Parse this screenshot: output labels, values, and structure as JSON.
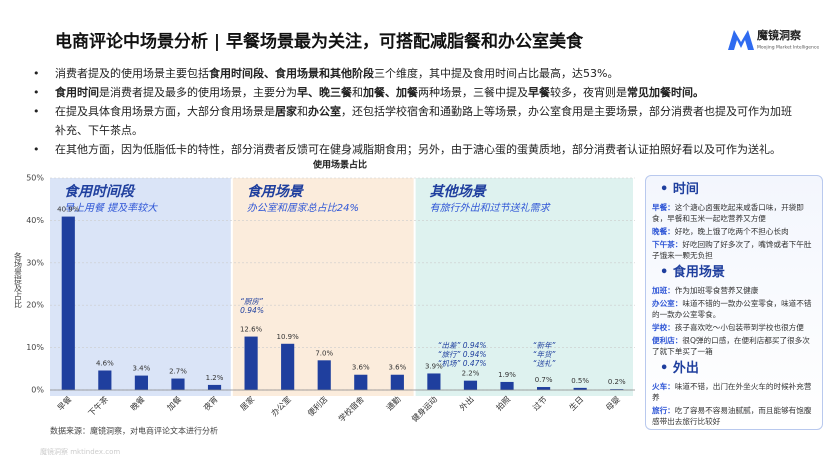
{
  "header": {
    "title": "电商评论中场景分析 | 早餐场景最为关注，可搭配减脂餐和办公室美食",
    "logo_name": "魔镜洞察",
    "logo_subtitle": "Moojing Market Intelligence"
  },
  "bullets": [
    [
      {
        "text": "消费者提及的使用场景主要包括"
      },
      {
        "text": "食用时间段、食用场景和其他阶段",
        "bold": true
      },
      {
        "text": "三个维度，其中提及食用时间占比最高，达53%。"
      }
    ],
    [
      {
        "text": "食用时间",
        "bold": true
      },
      {
        "text": "是消费者提及最多的使用场景，主要分为"
      },
      {
        "text": "早、晚三餐",
        "bold": true
      },
      {
        "text": "和"
      },
      {
        "text": "加餐、加餐",
        "bold": true
      },
      {
        "text": "两种场景，三餐中提及"
      },
      {
        "text": "早餐",
        "bold": true
      },
      {
        "text": "较多，夜宵则是"
      },
      {
        "text": "常见加餐时间。",
        "bold": true
      }
    ],
    [
      {
        "text": "在提及具体食用场景方面，大部分食用场景是"
      },
      {
        "text": "居家",
        "bold": true
      },
      {
        "text": "和"
      },
      {
        "text": "办公室",
        "bold": true
      },
      {
        "text": "，还包括学校宿舍和通勤路上等场景，办公室食用是主要场景，部分消费者也提及可作为加班补充、下午茶点。"
      }
    ],
    [
      {
        "text": "在其他方面，因为低脂低卡的特性，部分消费者反馈可在健身减脂期食用；另外，由于溏心蛋的蛋黄质地，部分消费者认证拍照好看以及可作为送礼。"
      }
    ]
  ],
  "chart_data": {
    "type": "bar",
    "title": "使用场景占比",
    "y_label": "各场景提及占比",
    "categories": [
      "早餐",
      "下午茶",
      "晚餐",
      "加餐",
      "夜宵",
      "居家",
      "办公室",
      "便利店",
      "学校宿舍",
      "通勤",
      "健身运动",
      "外出",
      "拍照",
      "过节",
      "生日",
      "母婴"
    ],
    "values": [
      40.9,
      4.6,
      3.4,
      2.7,
      1.2,
      12.6,
      10.9,
      7.0,
      3.6,
      3.6,
      3.9,
      2.2,
      1.9,
      0.7,
      0.5,
      0.2
    ],
    "value_labels": [
      "40.9%",
      "4.6%",
      "3.4%",
      "2.7%",
      "1.2%",
      "12.6%",
      "10.9%",
      "7.0%",
      "3.6%",
      "3.6%",
      "3.9%",
      "2.2%",
      "1.9%",
      "0.7%",
      "0.5%",
      "0.2%"
    ],
    "color": "#1f3f9e",
    "ylim": [
      0,
      50
    ],
    "yticks": [
      {
        "value": 0,
        "label": "0%"
      },
      {
        "value": 10,
        "label": "10%"
      },
      {
        "value": 20,
        "label": "20%"
      },
      {
        "value": 30,
        "label": "30%"
      },
      {
        "value": 40,
        "label": "40%"
      },
      {
        "value": 50,
        "label": "50%"
      }
    ],
    "grid": true,
    "groups": [
      {
        "title": "食用时间段",
        "subtitle": "早上用餐 提及率较大"
      },
      {
        "title": "食用场景",
        "subtitle": "办公室和居家总占比24%"
      },
      {
        "title": "其他场景",
        "subtitle": "有旅行外出和过节送礼需求"
      }
    ],
    "annotations": [
      [
        "“厨房”",
        "0.94%"
      ],
      [
        "“出差”  0.94%",
        "“旅行”  0.94%",
        "“机场”  0.47%"
      ],
      [
        "“新年”",
        "“年货”",
        "“送礼”"
      ]
    ]
  },
  "side_panel": [
    {
      "heading": "时间",
      "items": [
        {
          "label": "早餐：",
          "text": "这个溏心卤蛋吃起来咸香口味，开袋即食，早餐和玉米一起吃营养又方便"
        },
        {
          "label": "晚餐：",
          "text": "好吃，晚上饿了吃两个不担心长肉"
        },
        {
          "label": "下午茶：",
          "text": "好吃回购了好多次了，嘴馋或者下午肚子饿来一颗无负担"
        }
      ]
    },
    {
      "heading": "食用场景",
      "items": [
        {
          "label": "加班：",
          "text": "作为加班零食营养又健康"
        },
        {
          "label": "办公室：",
          "text": "味道不错的一款办公室零食，味道不错的一款办公室零食。"
        },
        {
          "label": "学校：",
          "text": "孩子喜欢吃～小包装带到学校也很方便"
        },
        {
          "label": "便利店：",
          "text": "很Q弹的口感，在便利店都买了很多次了就下单买了一箱"
        }
      ]
    },
    {
      "heading": "外出",
      "items": [
        {
          "label": "火车：",
          "text": "味道不错，出门在外坐火车的时候补充营养"
        },
        {
          "label": "旅行：",
          "text": "吃了容易不容易油腻腻，而且能够有饱腹感带出去旅行比较好"
        }
      ]
    }
  ],
  "footer": {
    "source": "数据来源：魔镜洞察，对电商评论文本进行分析",
    "watermark": "魔镜洞察 mktindex.com"
  }
}
